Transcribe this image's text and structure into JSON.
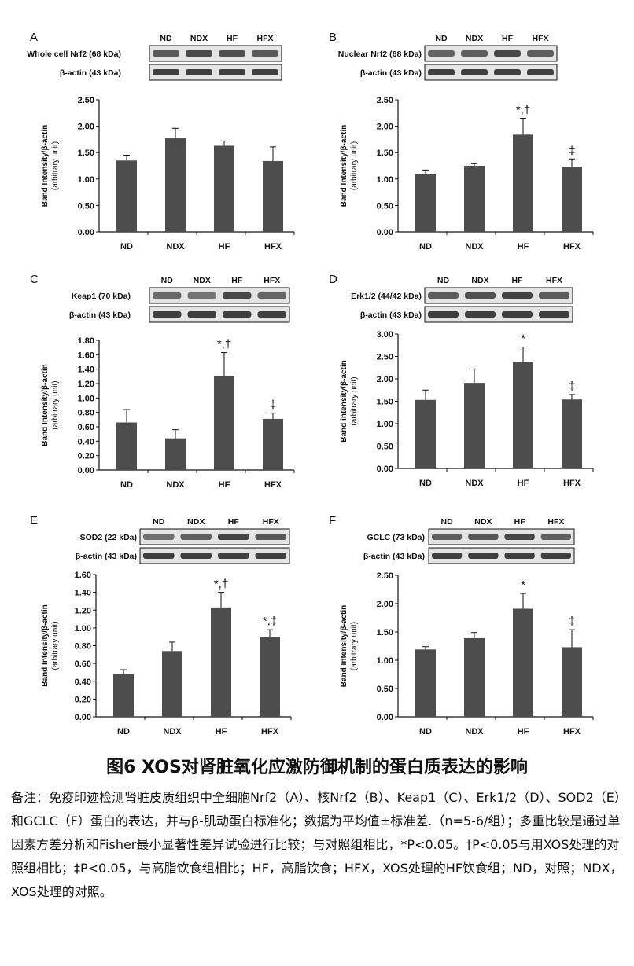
{
  "figure_title": "图6 XOS对肾脏氧化应激防御机制的蛋白质表达的影响",
  "figure_note": "备注：免疫印迹检测肾脏皮质组织中全细胞Nrf2（A）、核Nrf2（B）、Keap1（C）、Erk1/2（D）、SOD2（E）和GCLC（F）蛋白的表达，并与β-肌动蛋白标准化；数据为平均值±标准差.（n=5-6/组）；多重比较是通过单因素方差分析和Fisher最小显著性差异试验进行比较；与对照组相比，*P<0.05。†P<0.05与用XOS处理的对照组相比；‡P<0.05，与高脂饮食组相比；HF，高脂饮食；HFX，XOS处理的HF饮食组；ND，对照；NDX，XOS处理的对照。",
  "bar_color": "#4d4d4d",
  "chart_data": [
    {
      "panel": "A",
      "type": "bar",
      "blot_labels": [
        "Whole cell Nrf2 (68 kDa)",
        "β-actin (43 kDa)"
      ],
      "lane_labels": [
        "ND",
        "NDX",
        "HF",
        "HFX"
      ],
      "categories": [
        "ND",
        "NDX",
        "HF",
        "HFX"
      ],
      "values": [
        1.35,
        1.77,
        1.63,
        1.34
      ],
      "errors": [
        0.1,
        0.19,
        0.09,
        0.27
      ],
      "significance": [
        "",
        "",
        "",
        ""
      ],
      "ylabel": "Band Intensity/β-actin",
      "ylabel2": "(arbitrary unit)",
      "ylim": [
        0,
        2.5
      ],
      "yticks": [
        "0.00",
        "0.50",
        "1.00",
        "1.50",
        "2.00",
        "2.50"
      ]
    },
    {
      "panel": "B",
      "type": "bar",
      "blot_labels": [
        "Nuclear Nrf2 (68 kDa)",
        "β-actin (43 kDa)"
      ],
      "lane_labels": [
        "ND",
        "NDX",
        "HF",
        "HFX"
      ],
      "categories": [
        "ND",
        "NDX",
        "HF",
        "HFX"
      ],
      "values": [
        1.1,
        1.25,
        1.84,
        1.23
      ],
      "errors": [
        0.07,
        0.04,
        0.31,
        0.15
      ],
      "significance": [
        "",
        "",
        "*,†",
        "‡"
      ],
      "ylabel": "Band Intensity/β-actin",
      "ylabel2": "(arbitrary unit)",
      "ylim": [
        0,
        2.5
      ],
      "yticks": [
        "0.00",
        "0.50",
        "1.00",
        "1.50",
        "2.00",
        "2.50"
      ]
    },
    {
      "panel": "C",
      "type": "bar",
      "blot_labels": [
        "Keap1 (70 kDa)",
        "β-actin (43 kDa)"
      ],
      "lane_labels": [
        "ND",
        "NDX",
        "HF",
        "HFX"
      ],
      "categories": [
        "ND",
        "NDX",
        "HF",
        "HFX"
      ],
      "values": [
        0.66,
        0.44,
        1.3,
        0.71
      ],
      "errors": [
        0.18,
        0.12,
        0.33,
        0.08
      ],
      "significance": [
        "",
        "",
        "*,†",
        "‡"
      ],
      "ylabel": "Band Intensity/β-actin",
      "ylabel2": "(arbitrary unit)",
      "ylim": [
        0,
        1.8
      ],
      "yticks": [
        "0.00",
        "0.20",
        "0.40",
        "0.60",
        "0.80",
        "1.00",
        "1.20",
        "1.40",
        "1.60",
        "1.80"
      ]
    },
    {
      "panel": "D",
      "type": "bar",
      "blot_labels": [
        "Erk1/2 (44/42 kDa)",
        "β-actin (43 kDa)"
      ],
      "lane_labels": [
        "ND",
        "NDX",
        "HF",
        "HFX"
      ],
      "categories": [
        "ND",
        "NDX",
        "HF",
        "HFX"
      ],
      "values": [
        1.53,
        1.91,
        2.38,
        1.54
      ],
      "errors": [
        0.22,
        0.31,
        0.33,
        0.11
      ],
      "significance": [
        "",
        "",
        "*",
        "‡"
      ],
      "ylabel": "Band intensity/β-actin",
      "ylabel2": "(arbitrary unit)",
      "ylim": [
        0,
        3.0
      ],
      "yticks": [
        "0.00",
        "0.50",
        "1.00",
        "1.50",
        "2.00",
        "2.50",
        "3.00"
      ]
    },
    {
      "panel": "E",
      "type": "bar",
      "blot_labels": [
        "SOD2 (22 kDa)",
        "β-actin (43 kDa)"
      ],
      "lane_labels": [
        "ND",
        "NDX",
        "HF",
        "HFX"
      ],
      "categories": [
        "ND",
        "NDX",
        "HF",
        "HFX"
      ],
      "values": [
        0.48,
        0.74,
        1.23,
        0.9
      ],
      "errors": [
        0.05,
        0.1,
        0.17,
        0.08
      ],
      "significance": [
        "",
        "",
        "*,†",
        "*,‡"
      ],
      "ylabel": "Band Intensity/β-actin",
      "ylabel2": "(arbitrary unit)",
      "ylim": [
        0,
        1.6
      ],
      "yticks": [
        "0.00",
        "0.20",
        "0.40",
        "0.60",
        "0.80",
        "1.00",
        "1.20",
        "1.40",
        "1.60"
      ]
    },
    {
      "panel": "F",
      "type": "bar",
      "blot_labels": [
        "GCLC (73 kDa)",
        "β-actin (43 kDa)"
      ],
      "lane_labels": [
        "ND",
        "NDX",
        "HF",
        "HFX"
      ],
      "categories": [
        "ND",
        "NDX",
        "HF",
        "HFX"
      ],
      "values": [
        1.19,
        1.39,
        1.91,
        1.23
      ],
      "errors": [
        0.05,
        0.1,
        0.27,
        0.31
      ],
      "significance": [
        "",
        "",
        "*",
        "‡"
      ],
      "ylabel": "Band Intensity/β-actin",
      "ylabel2": "(arbitrary unit)",
      "ylim": [
        0,
        2.5
      ],
      "yticks": [
        "0.00",
        "0.50",
        "1.00",
        "1.50",
        "2.00",
        "2.50"
      ]
    }
  ]
}
